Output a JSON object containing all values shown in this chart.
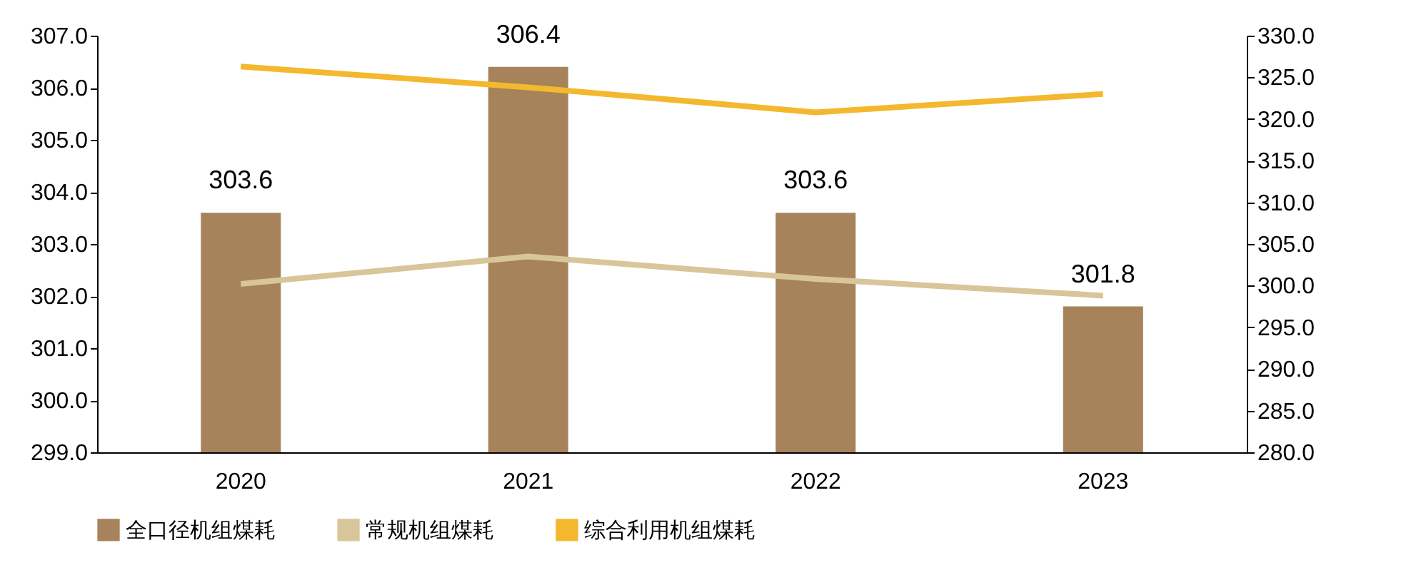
{
  "chart_data": {
    "type": "bar",
    "categories": [
      "2020",
      "2021",
      "2022",
      "2023"
    ],
    "series": [
      {
        "name": "全口径机组煤耗",
        "color": "#a6835a",
        "values": [
          303.6,
          306.4,
          303.6,
          301.8
        ],
        "value_labels": [
          "303.6",
          "306.4",
          "303.6",
          "301.8"
        ]
      },
      {
        "name": "常规机组煤耗",
        "type": "line",
        "axis": "y2",
        "color": "#d9c59a",
        "values": [
          300.2,
          303.5,
          300.8,
          298.8
        ]
      },
      {
        "name": "综合利用机组煤耗",
        "type": "line",
        "axis": "y2",
        "color": "#f4b82e",
        "values": [
          326.3,
          323.8,
          320.8,
          323.0
        ]
      }
    ],
    "ylim": [
      299,
      307
    ],
    "yticks": [
      {
        "value": 299,
        "label": "299.0"
      },
      {
        "value": 300,
        "label": "300.0"
      },
      {
        "value": 301,
        "label": "301.0"
      },
      {
        "value": 302,
        "label": "302.0"
      },
      {
        "value": 303,
        "label": "303.0"
      },
      {
        "value": 304,
        "label": "304.0"
      },
      {
        "value": 305,
        "label": "305.0"
      },
      {
        "value": 306,
        "label": "306.0"
      },
      {
        "value": 307,
        "label": "307.0"
      }
    ],
    "y2lim": [
      280,
      330
    ],
    "y2ticks": [
      {
        "value": 280,
        "label": "280.0"
      },
      {
        "value": 285,
        "label": "285.0"
      },
      {
        "value": 290,
        "label": "290.0"
      },
      {
        "value": 295,
        "label": "295.0"
      },
      {
        "value": 300,
        "label": "300.0"
      },
      {
        "value": 305,
        "label": "305.0"
      },
      {
        "value": 310,
        "label": "310.0"
      },
      {
        "value": 315,
        "label": "315.0"
      },
      {
        "value": 320,
        "label": "320.0"
      },
      {
        "value": 325,
        "label": "325.0"
      },
      {
        "value": 330,
        "label": "330.0"
      }
    ],
    "grid": false,
    "legend": "bottom",
    "marker": "none"
  }
}
